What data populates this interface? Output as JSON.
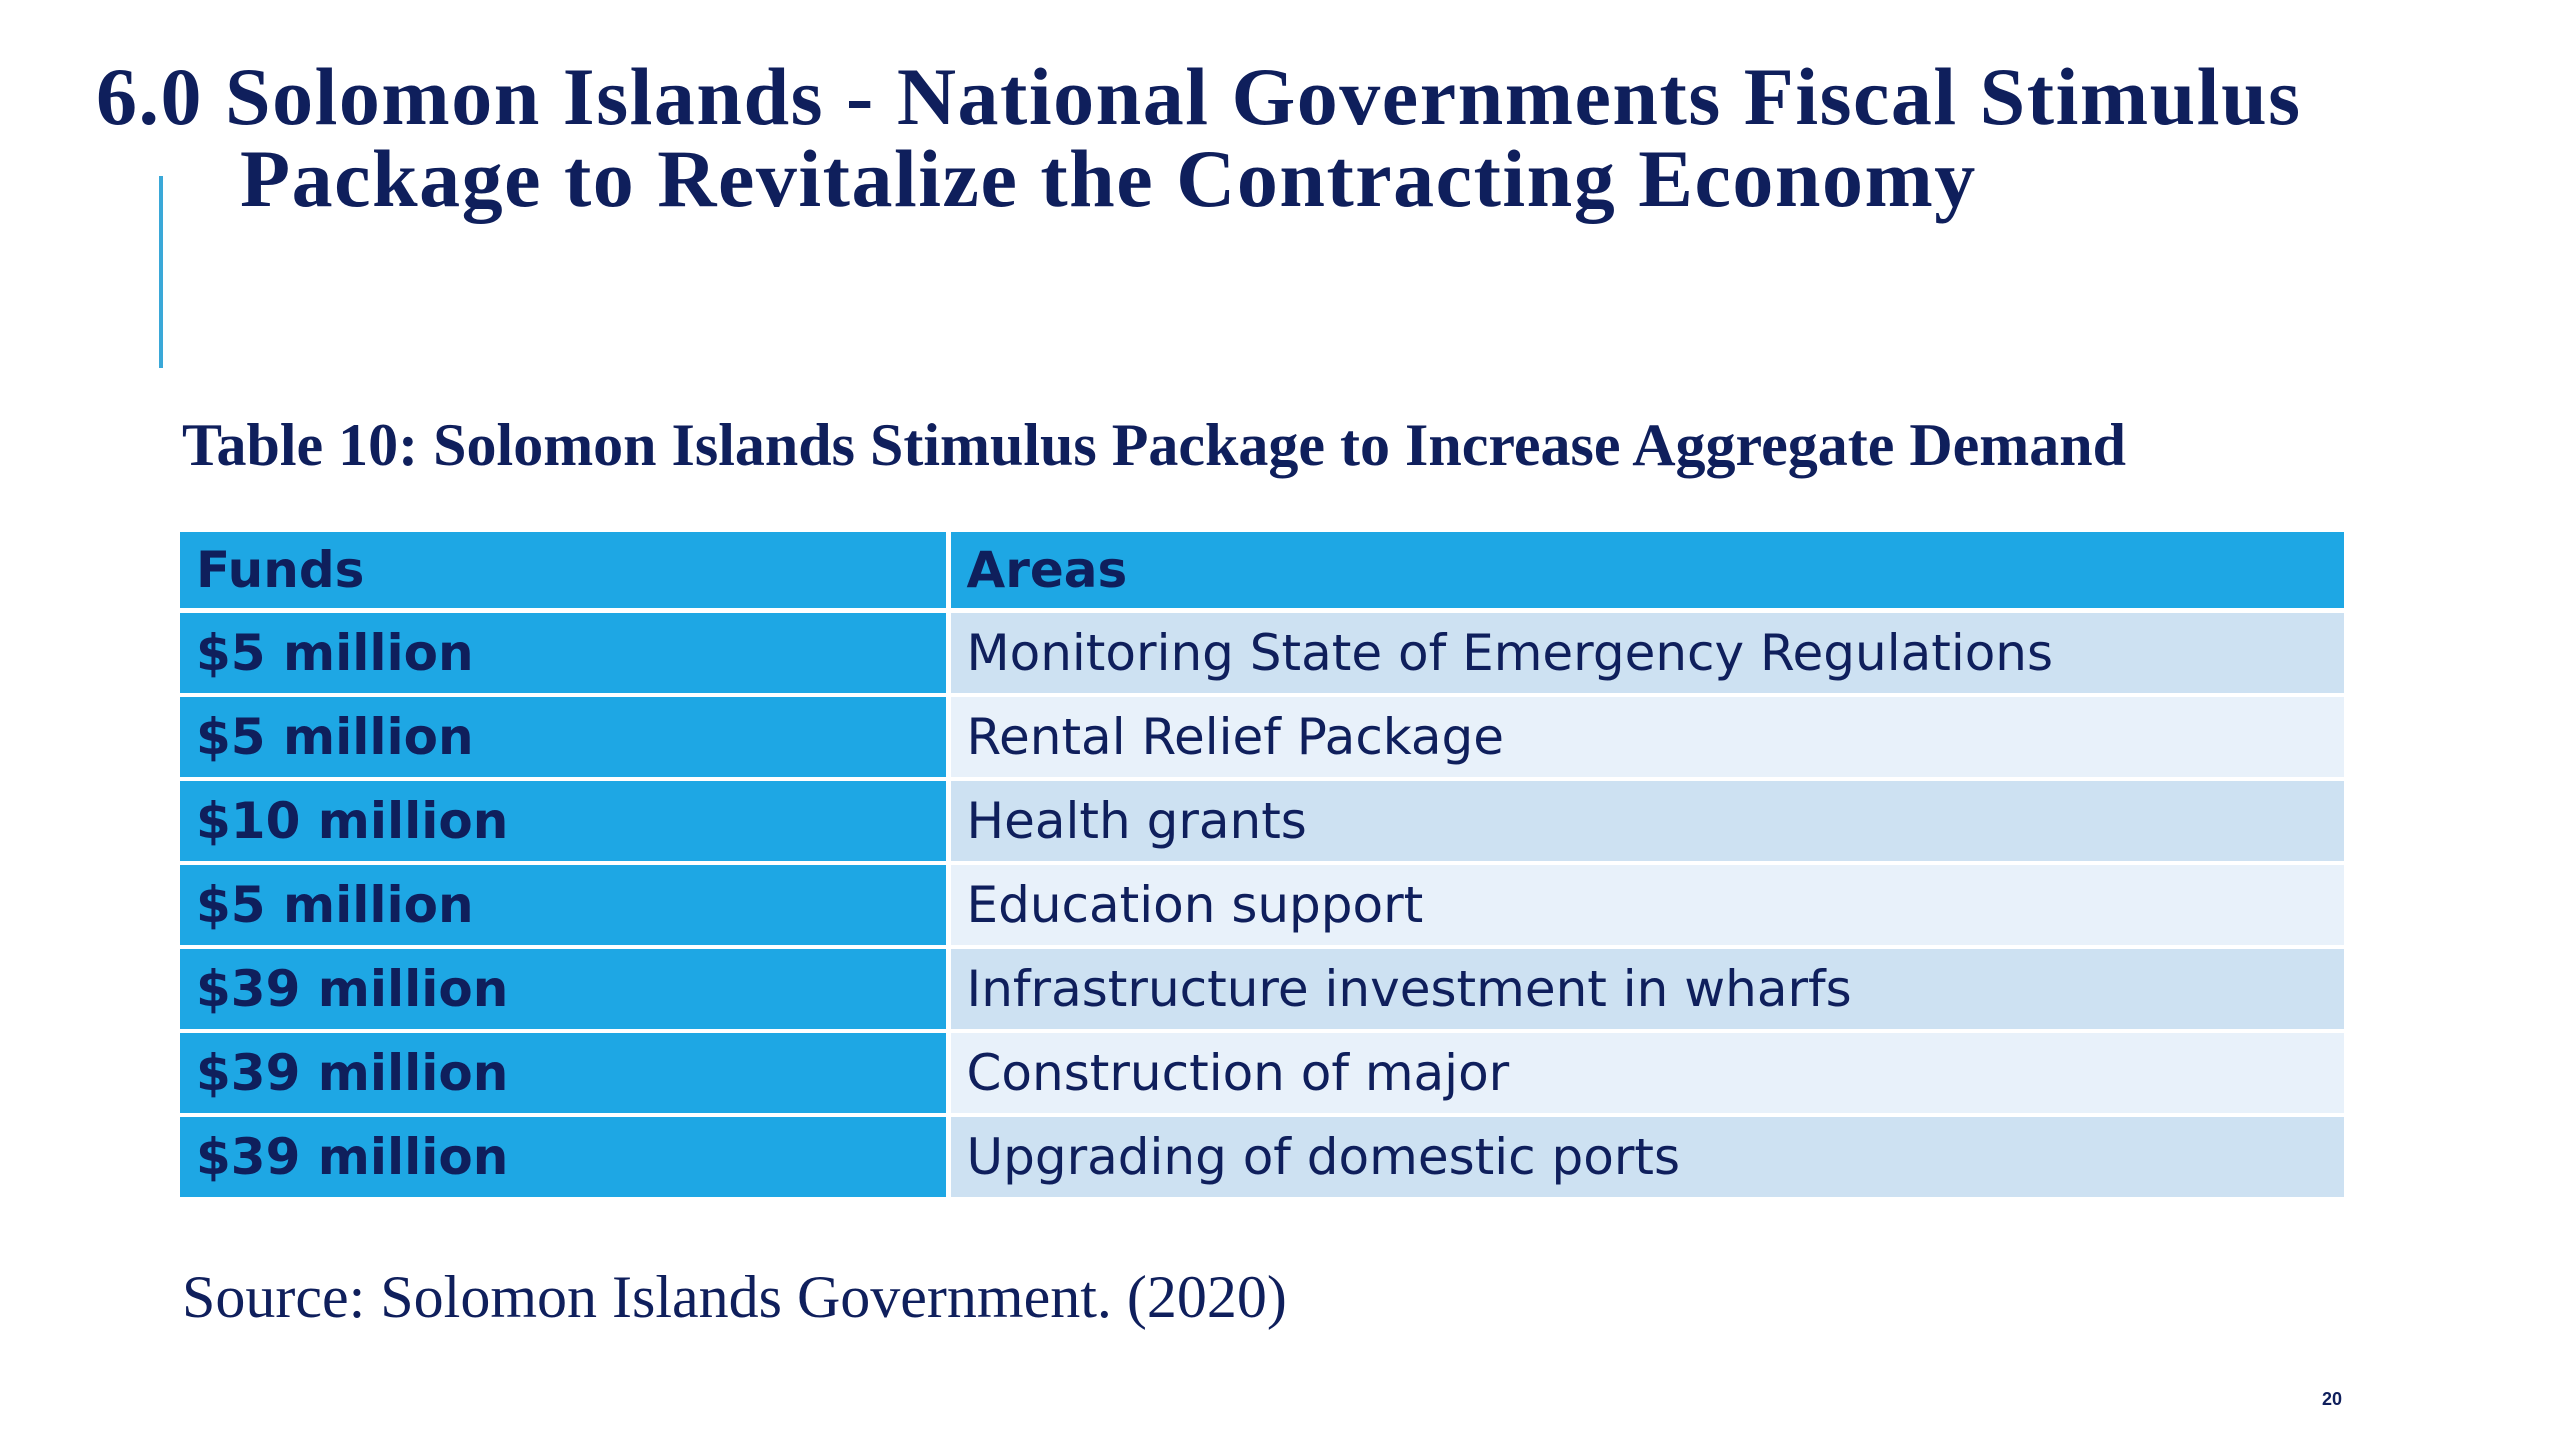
{
  "slide": {
    "title_line1": "6.0 Solomon Islands - National Governments Fiscal Stimulus",
    "title_line2": "Package to Revitalize the Contracting Economy",
    "caption": "Table 10: Solomon Islands Stimulus Package to Increase Aggregate Demand",
    "source": "Source: Solomon Islands Government. (2020)",
    "page_number": "20"
  },
  "table": {
    "headers": [
      "Funds",
      "Areas"
    ],
    "rows": [
      {
        "funds": "$5 million",
        "area": "Monitoring State of Emergency Regulations"
      },
      {
        "funds": "$5 million",
        "area": "Rental Relief Package"
      },
      {
        "funds": "$10 million",
        "area": "Health grants"
      },
      {
        "funds": "$5 million",
        "area": "Education support"
      },
      {
        "funds": "$39 million",
        "area": "Infrastructure investment in wharfs"
      },
      {
        "funds": "$39 million",
        "area": "Construction of major"
      },
      {
        "funds": "$39 million",
        "area": "Upgrading of domestic ports"
      }
    ]
  },
  "colors": {
    "title_text": "#0f1f5c",
    "accent_bar": "#3aa8d8",
    "header_fill": "#1ea7e4",
    "row_band_dark": "#cde1f2",
    "row_band_light": "#e8f1fa"
  }
}
